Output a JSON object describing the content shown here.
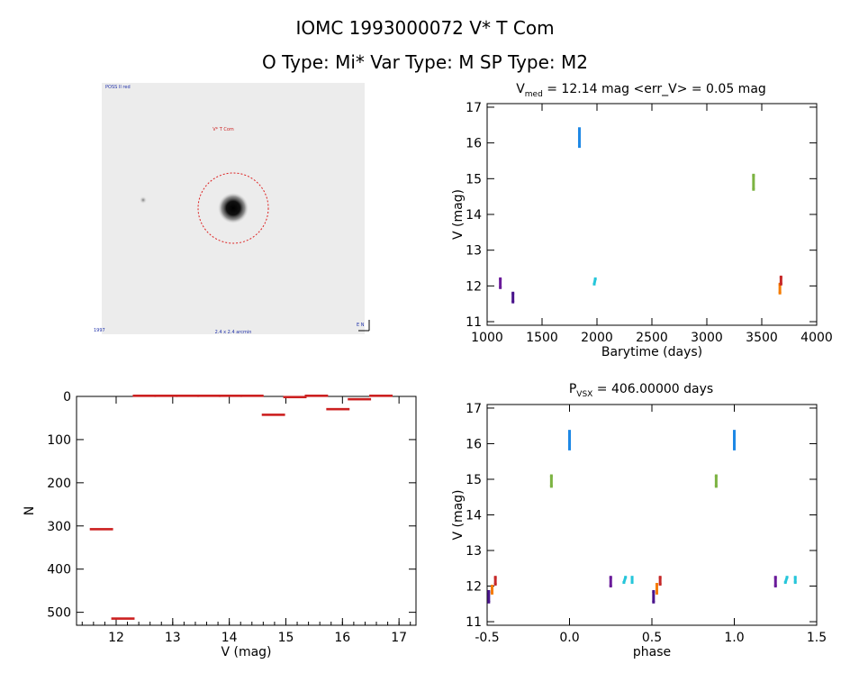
{
  "header": {
    "line1": "IOMC 1993000072   V* T Com",
    "line2": "O Type: Mi*  Var Type: M  SP Type: M2"
  },
  "thumbnail": {
    "label_top_left": "POSS II red",
    "label_center": "V* T Com",
    "label_bottom_center": "2.4 x 2.4 arcmin",
    "label_bottom_left": "1997",
    "label_bottom_right": "E N"
  },
  "chart_data": [
    {
      "type": "scatter",
      "id": "lightcurve",
      "title": {
        "main": "V",
        "sub": "med",
        "rest": " = 12.14 mag <err_V> = 0.05 mag"
      },
      "xlabel": "Barytime (days)",
      "ylabel": "V (mag)",
      "xlim": [
        1000,
        4000
      ],
      "ylim": [
        17.1,
        10.9
      ],
      "xticks": [
        1000,
        1500,
        2000,
        2500,
        3000,
        3500,
        4000
      ],
      "yticks": [
        11,
        12,
        13,
        14,
        15,
        16,
        17
      ],
      "series": [
        {
          "color": "#6a1b9a",
          "points": [
            [
              1120,
              11.95
            ],
            [
              1120,
              12.2
            ]
          ]
        },
        {
          "color": "#4a148c",
          "points": [
            [
              1235,
              11.55
            ],
            [
              1235,
              11.8
            ]
          ]
        },
        {
          "color": "#1e88e5",
          "points": [
            [
              1840,
              15.9
            ],
            [
              1840,
              16.4
            ]
          ]
        },
        {
          "color": "#26c6da",
          "points": [
            [
              1975,
              12.05
            ],
            [
              1985,
              12.2
            ]
          ]
        },
        {
          "color": "#7cb342",
          "points": [
            [
              3425,
              14.7
            ],
            [
              3425,
              15.1
            ]
          ]
        },
        {
          "color": "#f57c00",
          "points": [
            [
              3665,
              11.8
            ],
            [
              3665,
              12.05
            ]
          ]
        },
        {
          "color": "#c62828",
          "points": [
            [
              3675,
              12.05
            ],
            [
              3675,
              12.25
            ]
          ]
        }
      ]
    },
    {
      "type": "bar",
      "id": "histogram",
      "xlabel": "V (mag)",
      "ylabel": "N",
      "xlim": [
        11.3,
        17.3
      ],
      "ylim": [
        0,
        530
      ],
      "xticks": [
        12,
        13,
        14,
        15,
        16,
        17
      ],
      "yticks": [
        0,
        100,
        200,
        300,
        400,
        500
      ],
      "bin_edges": [
        11.55,
        11.93,
        12.31,
        12.69,
        13.07,
        13.45,
        13.83,
        14.21,
        14.59,
        14.97,
        15.35,
        15.73,
        16.11,
        16.49,
        16.87
      ],
      "values": [
        309,
        516,
        0,
        0,
        0,
        0,
        0,
        0,
        44,
        3,
        0,
        31,
        8,
        0
      ],
      "color": "#cc2020"
    },
    {
      "type": "scatter",
      "id": "phased",
      "title": {
        "main": "P",
        "sub": "VSX",
        "rest": " = 406.00000 days"
      },
      "xlabel": "phase",
      "ylabel": "V (mag)",
      "xlim": [
        -0.5,
        1.5
      ],
      "ylim": [
        17.1,
        10.9
      ],
      "xticks": [
        -0.5,
        0.0,
        0.5,
        1.0,
        1.5
      ],
      "yticks": [
        11,
        12,
        13,
        14,
        15,
        16,
        17
      ],
      "series": [
        {
          "color": "#4a148c",
          "points": [
            [
              -0.49,
              11.55
            ],
            [
              -0.49,
              11.85
            ],
            [
              0.51,
              11.55
            ],
            [
              0.51,
              11.85
            ]
          ]
        },
        {
          "color": "#f57c00",
          "points": [
            [
              -0.47,
              11.8
            ],
            [
              -0.47,
              12.0
            ],
            [
              0.53,
              11.8
            ],
            [
              0.53,
              12.05
            ]
          ]
        },
        {
          "color": "#c62828",
          "points": [
            [
              -0.45,
              12.05
            ],
            [
              -0.45,
              12.25
            ],
            [
              0.55,
              12.05
            ],
            [
              0.55,
              12.25
            ]
          ]
        },
        {
          "color": "#6a1b9a",
          "points": [
            [
              0.25,
              12.0
            ],
            [
              0.25,
              12.25
            ],
            [
              1.25,
              12.0
            ],
            [
              1.25,
              12.25
            ]
          ]
        },
        {
          "color": "#26c6da",
          "points": [
            [
              0.33,
              12.1
            ],
            [
              0.34,
              12.25
            ],
            [
              0.38,
              12.1
            ],
            [
              0.38,
              12.25
            ],
            [
              1.31,
              12.1
            ],
            [
              1.32,
              12.25
            ],
            [
              1.37,
              12.1
            ],
            [
              1.37,
              12.25
            ]
          ]
        },
        {
          "color": "#7cb342",
          "points": [
            [
              -0.11,
              14.8
            ],
            [
              -0.11,
              15.1
            ],
            [
              0.89,
              14.8
            ],
            [
              0.89,
              15.1
            ]
          ]
        },
        {
          "color": "#1e88e5",
          "points": [
            [
              0.0,
              15.85
            ],
            [
              0.0,
              16.35
            ],
            [
              1.0,
              15.85
            ],
            [
              1.0,
              16.35
            ]
          ]
        }
      ]
    }
  ]
}
